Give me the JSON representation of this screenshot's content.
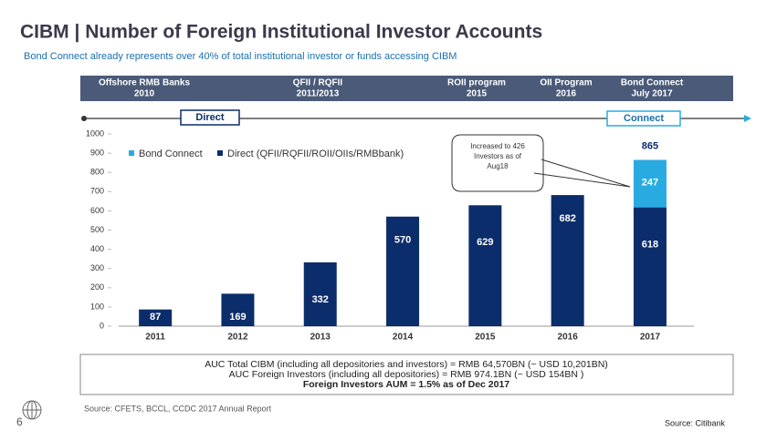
{
  "header": {
    "title": "CIBM | Number of Foreign Institutional Investor Accounts",
    "subtitle": "Bond Connect already represents over 40% of total institutional investor or funds accessing CIBM"
  },
  "timeline": [
    {
      "label": "Offshore RMB Banks",
      "year": "2010"
    },
    {
      "label": "QFII / RQFII",
      "year": "2011/2013"
    },
    {
      "label": "ROII program",
      "year": "2015"
    },
    {
      "label": "OII Program",
      "year": "2016"
    },
    {
      "label": "Bond Connect",
      "year": "July 2017"
    }
  ],
  "phases": {
    "direct": "Direct",
    "connect": "Connect"
  },
  "chart_data": {
    "type": "stacked_bar",
    "categories": [
      "2011",
      "2012",
      "2013",
      "2014",
      "2015",
      "2016",
      "2017"
    ],
    "series": [
      {
        "name": "Direct (QFII/RQFII/ROII/OIIs/RMBbank)",
        "color": "#0c2d6b",
        "values": [
          87,
          169,
          332,
          570,
          629,
          682,
          618
        ]
      },
      {
        "name": "Bond Connect",
        "color": "#29abe2",
        "values": [
          null,
          null,
          null,
          null,
          null,
          null,
          247
        ]
      }
    ],
    "total_label": 865,
    "ylim": [
      0,
      1000
    ],
    "yticks": [
      0,
      100,
      200,
      300,
      400,
      500,
      600,
      700,
      800,
      900,
      1000
    ],
    "annotation": "Increased to 426 Investors as of Aug18"
  },
  "summary": [
    "AUC Total CIBM (including all depositories and investors) = RMB 64,570BN (~ USD 10,201BN)",
    "AUC Foreign Investors (including all depositories) = RMB 974.1BN (~ USD 154BN )",
    "Foreign Investors AUM = 1.5% as of Dec 2017"
  ],
  "footer": {
    "source": "Source: CFETS, BCCL, CCDC 2017 Annual Report",
    "page": "6",
    "credit": "Source: Citibank"
  }
}
